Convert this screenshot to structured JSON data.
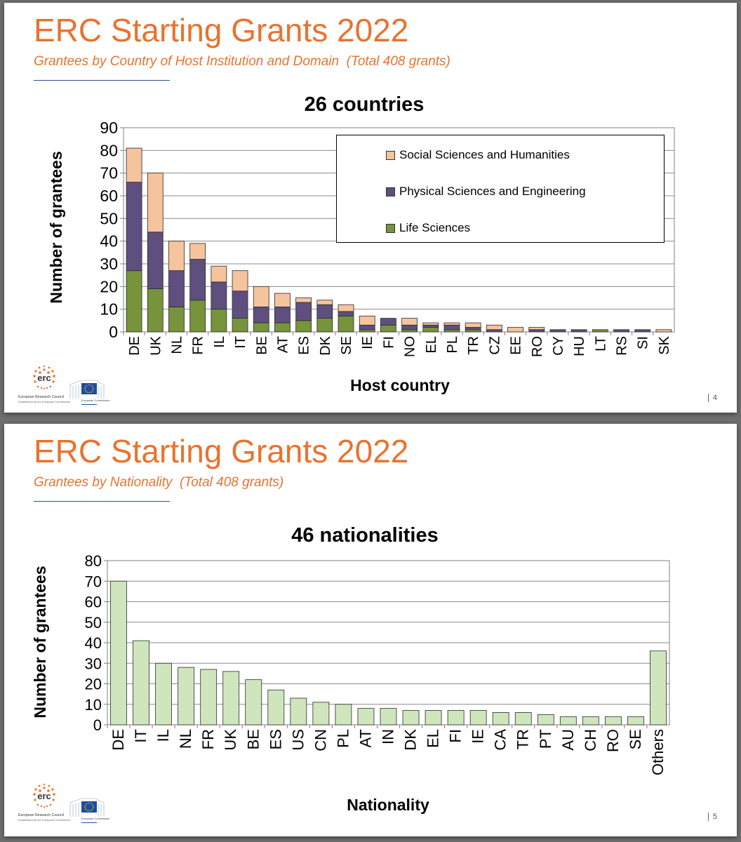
{
  "slides": [
    {
      "title": "ERC Starting Grants 2022",
      "subtitle": "Grantees by Country of Host Institution and Domain  (Total 408 grants)",
      "page_number": "4",
      "logo_erc": {
        "mark": "erc",
        "name": "European Research Council",
        "tagline": "Established by the European Commission"
      },
      "logo_ec": {
        "name": "European Commission"
      }
    },
    {
      "title": "ERC Starting Grants 2022",
      "subtitle": "Grantees by Nationality  (Total 408 grants)",
      "page_number": "5",
      "logo_erc": {
        "mark": "erc",
        "name": "European Research Council",
        "tagline": "Established by the European Commission"
      },
      "logo_ec": {
        "name": "European Commission"
      }
    }
  ],
  "colors": {
    "title_orange": "#e8732f",
    "rule_blue": "#2d4f8e",
    "life_sciences": "#77933c",
    "physical_sciences": "#5e4f7f",
    "social_sciences": "#f5c49c",
    "nationality_bar": "#cfe6bd"
  },
  "chart_data": [
    {
      "type": "bar",
      "stacked": true,
      "title": "26 countries",
      "xlabel": "Host country",
      "ylabel": "Number of grantees",
      "ylim": [
        0,
        90
      ],
      "yticks": [
        0,
        10,
        20,
        30,
        40,
        50,
        60,
        70,
        80,
        90
      ],
      "grid": true,
      "legend_position": "top-right",
      "categories": [
        "DE",
        "UK",
        "NL",
        "FR",
        "IL",
        "IT",
        "BE",
        "AT",
        "ES",
        "DK",
        "SE",
        "IE",
        "FI",
        "NO",
        "EL",
        "PL",
        "TR",
        "CZ",
        "EE",
        "RO",
        "CY",
        "HU",
        "LT",
        "RS",
        "SI",
        "SK"
      ],
      "series": [
        {
          "name": "Life Sciences",
          "color": "#77933c",
          "values": [
            27,
            19,
            11,
            14,
            10,
            6,
            4,
            4,
            5,
            6,
            7,
            1,
            3,
            1,
            2,
            1,
            1,
            0,
            0,
            0,
            0,
            0,
            1,
            0,
            0,
            0
          ]
        },
        {
          "name": "Physical Sciences and Engineering",
          "color": "#5e4f7f",
          "values": [
            39,
            25,
            16,
            18,
            12,
            12,
            7,
            7,
            8,
            6,
            2,
            2,
            3,
            2,
            1,
            2,
            1,
            1,
            0,
            1,
            1,
            1,
            0,
            1,
            1,
            0
          ]
        },
        {
          "name": "Social Sciences and Humanities",
          "color": "#f5c49c",
          "values": [
            15,
            26,
            13,
            7,
            7,
            9,
            9,
            6,
            2,
            2,
            3,
            4,
            0,
            3,
            1,
            1,
            2,
            2,
            2,
            1,
            0,
            0,
            0,
            0,
            0,
            1
          ]
        }
      ]
    },
    {
      "type": "bar",
      "title": "46 nationalities",
      "xlabel": "Nationality",
      "ylabel": "Number of grantees",
      "ylim": [
        0,
        80
      ],
      "yticks": [
        0,
        10,
        20,
        30,
        40,
        50,
        60,
        70,
        80
      ],
      "grid": true,
      "categories": [
        "DE",
        "IT",
        "IL",
        "NL",
        "FR",
        "UK",
        "BE",
        "ES",
        "US",
        "CN",
        "PL",
        "AT",
        "IN",
        "DK",
        "EL",
        "FI",
        "IE",
        "CA",
        "TR",
        "PT",
        "AU",
        "CH",
        "RO",
        "SE",
        "Others"
      ],
      "values": [
        70,
        41,
        30,
        28,
        27,
        26,
        22,
        17,
        13,
        11,
        10,
        8,
        8,
        7,
        7,
        7,
        7,
        6,
        6,
        5,
        4,
        4,
        4,
        4,
        36
      ],
      "color": "#cfe6bd"
    }
  ]
}
